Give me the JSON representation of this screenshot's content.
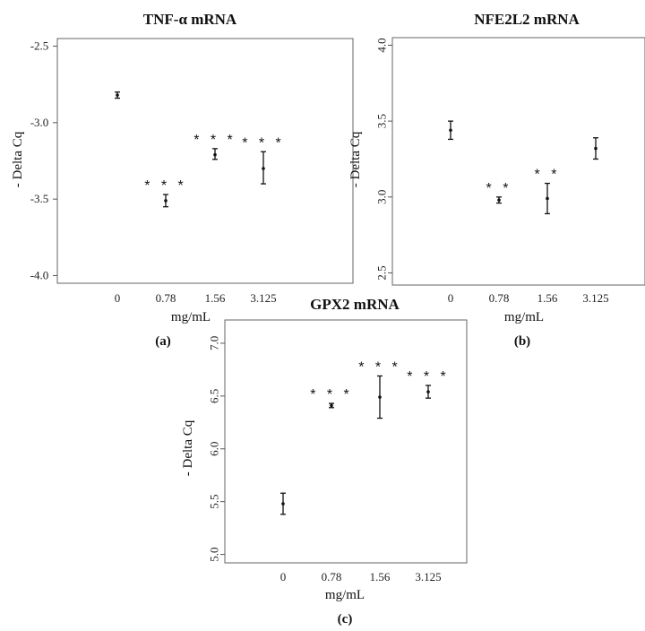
{
  "chart_data": [
    {
      "type": "scatter",
      "title": "TNF-α mRNA",
      "panel_label": "(a)",
      "xlabel": "mg/mL",
      "ylabel": "- Delta Cq",
      "categories": [
        "0",
        "0.78",
        "1.56",
        "3.125"
      ],
      "yticks": [
        "-2.5",
        "-3.0",
        "-3.5",
        "-4.0"
      ],
      "ytick_values": [
        -2.5,
        -3.0,
        -3.5,
        -4.0
      ],
      "ylim": [
        -4.05,
        -2.45
      ],
      "mean": [
        -2.82,
        -3.51,
        -3.21,
        -3.3
      ],
      "err_low": [
        -2.84,
        -3.55,
        -3.24,
        -3.4
      ],
      "err_high": [
        -2.8,
        -3.47,
        -3.17,
        -3.19
      ],
      "significance": [
        "",
        "* * *",
        "* * *",
        "* * *"
      ]
    },
    {
      "type": "scatter",
      "title": "NFE2L2 mRNA",
      "panel_label": "(b)",
      "xlabel": "mg/mL",
      "ylabel": "- Delta Cq",
      "categories": [
        "0",
        "0.78",
        "1.56",
        "3.125"
      ],
      "yticks": [
        "4.0",
        "3.5",
        "3.0",
        "2.5"
      ],
      "ytick_values": [
        4.0,
        3.5,
        3.0,
        2.5
      ],
      "ylim": [
        2.42,
        4.05
      ],
      "mean": [
        3.44,
        2.98,
        2.99,
        3.32
      ],
      "err_low": [
        3.38,
        2.96,
        2.89,
        3.25
      ],
      "err_high": [
        3.5,
        3.0,
        3.09,
        3.39
      ],
      "significance": [
        "",
        "* *",
        "* *",
        ""
      ]
    },
    {
      "type": "scatter",
      "title": "GPX2 mRNA",
      "panel_label": "(c)",
      "xlabel": "mg/mL",
      "ylabel": "- Delta Cq",
      "categories": [
        "0",
        "0.78",
        "1.56",
        "3.125"
      ],
      "yticks": [
        "7.0",
        "6.5",
        "6.0",
        "5.5",
        "5.0"
      ],
      "ytick_values": [
        7.0,
        6.5,
        6.0,
        5.5,
        5.0
      ],
      "ylim": [
        4.92,
        7.22
      ],
      "mean": [
        5.48,
        6.41,
        6.49,
        6.54
      ],
      "err_low": [
        5.38,
        6.39,
        6.29,
        6.48
      ],
      "err_high": [
        5.58,
        6.43,
        6.69,
        6.6
      ],
      "significance": [
        "",
        "* * *",
        "* * *",
        "* * *"
      ]
    }
  ]
}
